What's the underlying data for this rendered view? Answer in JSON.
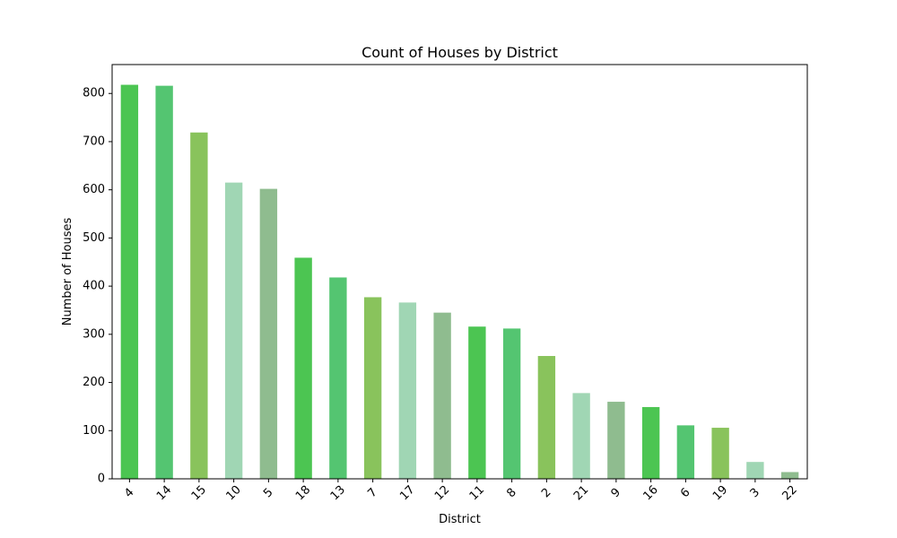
{
  "chart_data": {
    "type": "bar",
    "title": "Count of Houses by District",
    "xlabel": "District",
    "ylabel": "Number of Houses",
    "categories": [
      "4",
      "14",
      "15",
      "10",
      "5",
      "18",
      "13",
      "7",
      "17",
      "12",
      "11",
      "8",
      "2",
      "21",
      "9",
      "16",
      "6",
      "19",
      "3",
      "22"
    ],
    "values": [
      818,
      816,
      719,
      615,
      602,
      459,
      418,
      377,
      366,
      345,
      316,
      312,
      255,
      178,
      160,
      149,
      111,
      106,
      35,
      14
    ],
    "colors": [
      "#4cc552",
      "#54c571",
      "#89c35c",
      "#a0d6b4",
      "#8fbc8f",
      "#4cc552",
      "#54c571",
      "#89c35c",
      "#a0d6b4",
      "#8fbc8f",
      "#4cc552",
      "#54c571",
      "#89c35c",
      "#a0d6b4",
      "#8fbc8f",
      "#4cc552",
      "#54c571",
      "#89c35c",
      "#a0d6b4",
      "#8fbc8f"
    ],
    "ylim": [
      0,
      860
    ],
    "yticks": [
      0,
      100,
      200,
      300,
      400,
      500,
      600,
      700,
      800
    ],
    "x_tick_rotation": 45,
    "grid": false,
    "legend": false
  }
}
